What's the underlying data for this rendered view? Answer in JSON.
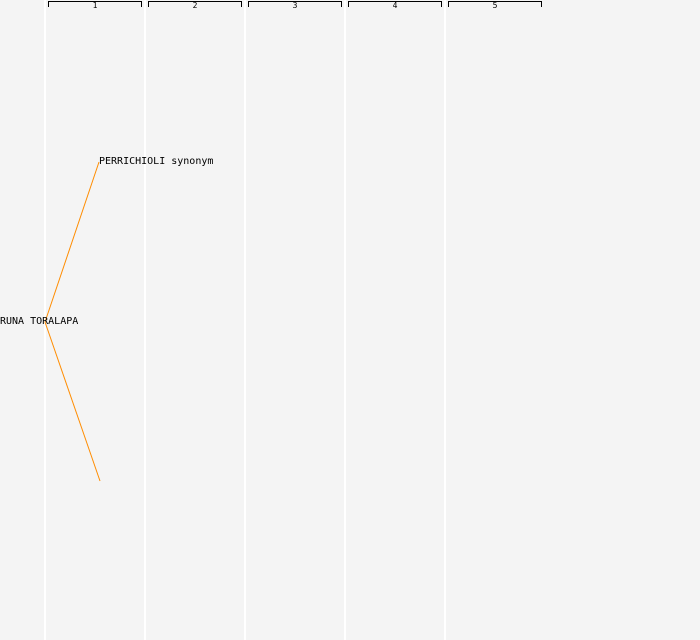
{
  "columns": [
    "1",
    "2",
    "3",
    "4",
    "5"
  ],
  "nodes": {
    "root": "RUNA TORALAPA",
    "child1": "PERRICHIOLI synonym",
    "child2": ""
  },
  "colors": {
    "edge": "#ff8c00",
    "background": "#f4f4f4"
  }
}
